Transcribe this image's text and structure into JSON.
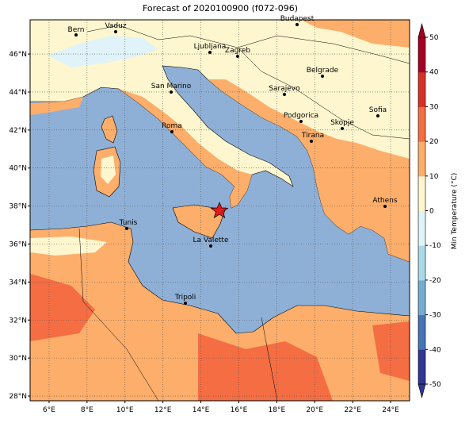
{
  "title": "Forecast of 2020100900 (f072-096)",
  "map": {
    "xlim": [
      5,
      25
    ],
    "ylim": [
      27.75,
      47.8
    ],
    "xticks": [
      {
        "value": 6,
        "label": "6°E"
      },
      {
        "value": 8,
        "label": "8°E"
      },
      {
        "value": 10,
        "label": "10°E"
      },
      {
        "value": 12,
        "label": "12°E"
      },
      {
        "value": 14,
        "label": "14°E"
      },
      {
        "value": 16,
        "label": "16°E"
      },
      {
        "value": 18,
        "label": "18°E"
      },
      {
        "value": 20,
        "label": "20°E"
      },
      {
        "value": 22,
        "label": "22°E"
      },
      {
        "value": 24,
        "label": "24°E"
      }
    ],
    "yticks": [
      {
        "value": 28,
        "label": "28°N"
      },
      {
        "value": 30,
        "label": "30°N"
      },
      {
        "value": 32,
        "label": "32°N"
      },
      {
        "value": 34,
        "label": "34°N"
      },
      {
        "value": 36,
        "label": "36°N"
      },
      {
        "value": 38,
        "label": "38°N"
      },
      {
        "value": 40,
        "label": "40°N"
      },
      {
        "value": 42,
        "label": "42°N"
      },
      {
        "value": 44,
        "label": "44°N"
      },
      {
        "value": 46,
        "label": "46°N"
      }
    ],
    "grid": true,
    "cities": [
      "Bern",
      "Vaduz",
      "Budapest",
      "Ljubljana",
      "Zagreb",
      "Belgrade",
      "San Marino",
      "Sarajevo",
      "Sofia",
      "Podgorica",
      "Skopje",
      "Roma",
      "Tirana",
      "Athens",
      "Tunis",
      "La Valette",
      "Tripoli"
    ]
  },
  "colorbar": {
    "label": "Min Temperature (°C)",
    "lim": [
      -50,
      50
    ],
    "ticks": [
      -50,
      -40,
      -30,
      -20,
      -10,
      0,
      10,
      20,
      30,
      40,
      50
    ],
    "colors": [
      "#313695",
      "#4575b4",
      "#74add1",
      "#abd9e9",
      "#e0f3f8",
      "#fef6ce",
      "#fdae6b",
      "#f46d43",
      "#d73027",
      "#a50026"
    ]
  }
}
